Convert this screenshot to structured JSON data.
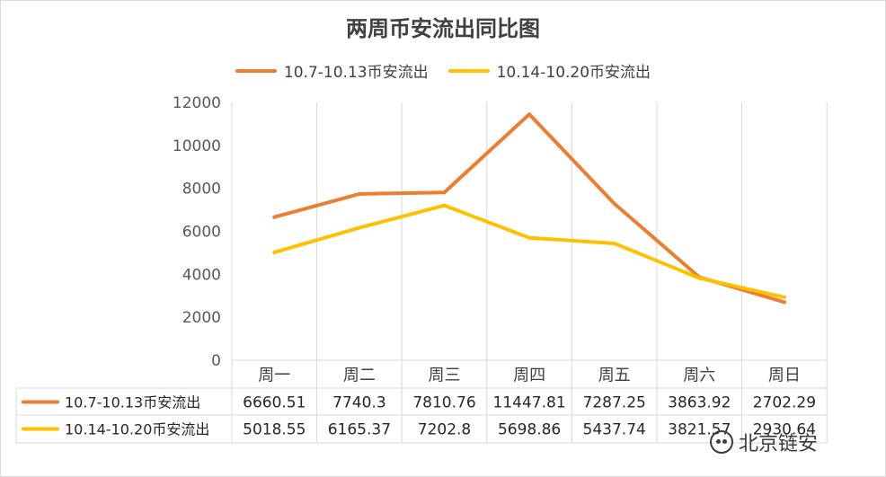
{
  "chart_data": {
    "type": "line",
    "title": "两周币安流出同比图",
    "categories": [
      "周一",
      "周二",
      "周三",
      "周四",
      "周五",
      "周六",
      "周日"
    ],
    "series": [
      {
        "name": "10.7-10.13币安流出",
        "color": "#ED7D31",
        "values": [
          6660.51,
          7740.3,
          7810.76,
          11447.81,
          7287.25,
          3863.92,
          2702.29
        ],
        "labels": [
          "6660.51",
          "7740.3",
          "7810.76",
          "11447.81",
          "7287.25",
          "3863.92",
          "2702.29"
        ]
      },
      {
        "name": "10.14-10.20币安流出",
        "color": "#FFC000",
        "values": [
          5018.55,
          6165.37,
          7202.8,
          5698.86,
          5437.74,
          3821.57,
          2930.64
        ],
        "labels": [
          "5018.55",
          "6165.37",
          "7202.8",
          "5698.86",
          "5437.74",
          "3821.57",
          "2930.64"
        ]
      }
    ],
    "ylim": [
      0,
      12000
    ],
    "yticks": [
      "0",
      "2000",
      "4000",
      "6000",
      "8000",
      "10000",
      "12000"
    ],
    "grid": "vertical",
    "legend": "top",
    "data_table": true
  },
  "watermark": {
    "text": "北京链安",
    "icon": "wechat-icon"
  }
}
